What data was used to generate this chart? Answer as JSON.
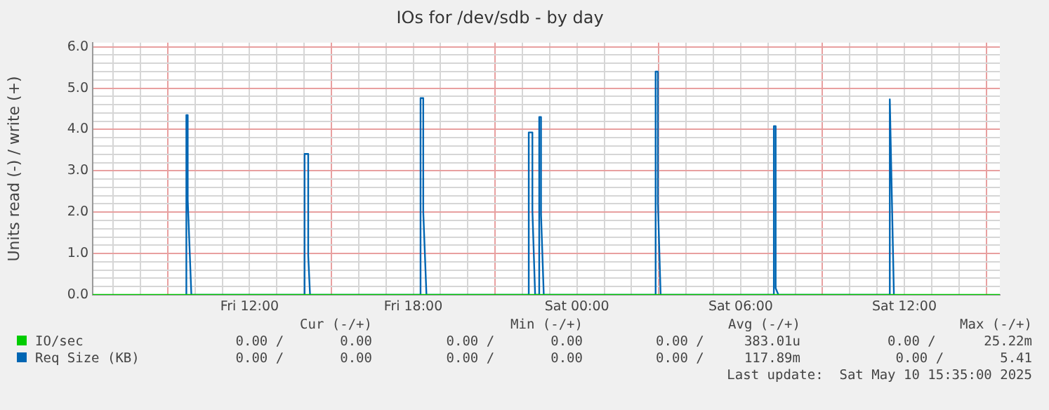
{
  "chart_data": {
    "type": "line",
    "title": "IOs for /dev/sdb - by day",
    "ylabel": "Units read (-) / write (+)",
    "xlim": [
      "2025-05-09T06:15",
      "2025-05-10T15:30"
    ],
    "xticks": [
      {
        "value": "2025-05-09T07:00",
        "label": null
      },
      {
        "value": "2025-05-09T08:00",
        "label": null
      },
      {
        "value": "2025-05-09T09:00",
        "label": null
      },
      {
        "value": "2025-05-09T10:00",
        "label": null
      },
      {
        "value": "2025-05-09T11:00",
        "label": null
      },
      {
        "value": "2025-05-09T12:00",
        "label": "Fri 12:00"
      },
      {
        "value": "2025-05-09T13:00",
        "label": null
      },
      {
        "value": "2025-05-09T14:00",
        "label": null
      },
      {
        "value": "2025-05-09T15:00",
        "label": null
      },
      {
        "value": "2025-05-09T16:00",
        "label": null
      },
      {
        "value": "2025-05-09T17:00",
        "label": null
      },
      {
        "value": "2025-05-09T18:00",
        "label": "Fri 18:00"
      },
      {
        "value": "2025-05-09T19:00",
        "label": null
      },
      {
        "value": "2025-05-09T20:00",
        "label": null
      },
      {
        "value": "2025-05-09T21:00",
        "label": null
      },
      {
        "value": "2025-05-09T22:00",
        "label": null
      },
      {
        "value": "2025-05-09T23:00",
        "label": null
      },
      {
        "value": "2025-05-10T00:00",
        "label": "Sat 00:00"
      },
      {
        "value": "2025-05-10T01:00",
        "label": null
      },
      {
        "value": "2025-05-10T02:00",
        "label": null
      },
      {
        "value": "2025-05-10T03:00",
        "label": null
      },
      {
        "value": "2025-05-10T04:00",
        "label": null
      },
      {
        "value": "2025-05-10T05:00",
        "label": null
      },
      {
        "value": "2025-05-10T06:00",
        "label": "Sat 06:00"
      },
      {
        "value": "2025-05-10T07:00",
        "label": null
      },
      {
        "value": "2025-05-10T08:00",
        "label": null
      },
      {
        "value": "2025-05-10T09:00",
        "label": null
      },
      {
        "value": "2025-05-10T10:00",
        "label": null
      },
      {
        "value": "2025-05-10T11:00",
        "label": null
      },
      {
        "value": "2025-05-10T12:00",
        "label": "Sat 12:00"
      },
      {
        "value": "2025-05-10T13:00",
        "label": null
      },
      {
        "value": "2025-05-10T14:00",
        "label": null
      },
      {
        "value": "2025-05-10T15:00",
        "label": null
      }
    ],
    "ylim": [
      0,
      6.1
    ],
    "yticks": [
      {
        "value": 0,
        "label": "0.0"
      },
      {
        "value": 0.2,
        "label": null
      },
      {
        "value": 0.4,
        "label": null
      },
      {
        "value": 0.6,
        "label": null
      },
      {
        "value": 0.8,
        "label": null
      },
      {
        "value": 1,
        "label": "1.0"
      },
      {
        "value": 1.2,
        "label": null
      },
      {
        "value": 1.4,
        "label": null
      },
      {
        "value": 1.6,
        "label": null
      },
      {
        "value": 1.8,
        "label": null
      },
      {
        "value": 2,
        "label": "2.0"
      },
      {
        "value": 2.2,
        "label": null
      },
      {
        "value": 2.4,
        "label": null
      },
      {
        "value": 2.6,
        "label": null
      },
      {
        "value": 2.8,
        "label": null
      },
      {
        "value": 3,
        "label": "3.0"
      },
      {
        "value": 3.2,
        "label": null
      },
      {
        "value": 3.4,
        "label": null
      },
      {
        "value": 3.6,
        "label": null
      },
      {
        "value": 3.8,
        "label": null
      },
      {
        "value": 4,
        "label": "4.0"
      },
      {
        "value": 4.2,
        "label": null
      },
      {
        "value": 4.4,
        "label": null
      },
      {
        "value": 4.6,
        "label": null
      },
      {
        "value": 4.8,
        "label": null
      },
      {
        "value": 5,
        "label": "5.0"
      },
      {
        "value": 5.2,
        "label": null
      },
      {
        "value": 5.4,
        "label": null
      },
      {
        "value": 5.6,
        "label": null
      },
      {
        "value": 5.8,
        "label": null
      },
      {
        "value": 6,
        "label": "6.0"
      }
    ],
    "grid": true,
    "legend": "bottom",
    "marker": "none",
    "line_style": "solid",
    "series": [
      {
        "name": "IO/sec",
        "color": "#00cc00",
        "x": [
          "2025-05-09T06:15",
          "2025-05-10T15:30"
        ],
        "values": [
          0,
          0
        ]
      },
      {
        "name": "Req Size (KB)",
        "color": "#0066b3",
        "x": [
          "2025-05-09T09:41",
          "2025-05-09T09:41",
          "2025-05-09T09:44",
          "2025-05-09T09:44",
          "2025-05-09T09:52",
          "2025-05-09T14:01",
          "2025-05-09T14:01",
          "2025-05-09T14:09",
          "2025-05-09T14:09",
          "2025-05-09T14:13",
          "2025-05-09T18:16",
          "2025-05-09T18:16",
          "2025-05-09T18:22",
          "2025-05-09T18:22",
          "2025-05-09T18:29",
          "2025-05-09T22:14",
          "2025-05-09T22:14",
          "2025-05-09T22:22",
          "2025-05-09T22:22",
          "2025-05-09T22:28",
          "2025-05-09T22:37",
          "2025-05-09T22:37",
          "2025-05-09T22:41",
          "2025-05-09T22:41",
          "2025-05-09T22:47",
          "2025-05-10T02:53",
          "2025-05-10T02:53",
          "2025-05-10T02:58",
          "2025-05-10T02:58",
          "2025-05-10T03:04",
          "2025-05-10T07:13",
          "2025-05-10T07:13",
          "2025-05-10T07:17",
          "2025-05-10T07:17",
          "2025-05-10T07:23",
          "2025-05-10T11:28",
          "2025-05-10T11:28",
          "2025-05-10T11:37"
        ],
        "values": [
          0,
          4.35,
          4.35,
          2.3,
          0,
          0,
          3.41,
          3.41,
          0.95,
          0,
          0,
          4.76,
          4.76,
          2.01,
          0,
          0,
          3.93,
          3.93,
          2.04,
          0,
          0,
          4.3,
          4.3,
          1.94,
          0,
          0,
          5.4,
          5.4,
          2.23,
          0,
          0,
          4.08,
          4.08,
          0.16,
          0,
          0,
          4.73,
          0
        ]
      }
    ],
    "annotations": [
      "Cur (-/+)",
      "Min (-/+)",
      "Avg (-/+)",
      "Max (-/+)",
      "0.00 /       0.00",
      "0.00 /       0.00",
      "0.00 /     383.01u",
      "0.00 /      25.22m",
      "0.00 /       0.00",
      "0.00 /       0.00",
      "0.00 /     117.89m",
      "0.00 /       5.41",
      "Last update:  Sat May 10 15:35:00 2025"
    ]
  }
}
